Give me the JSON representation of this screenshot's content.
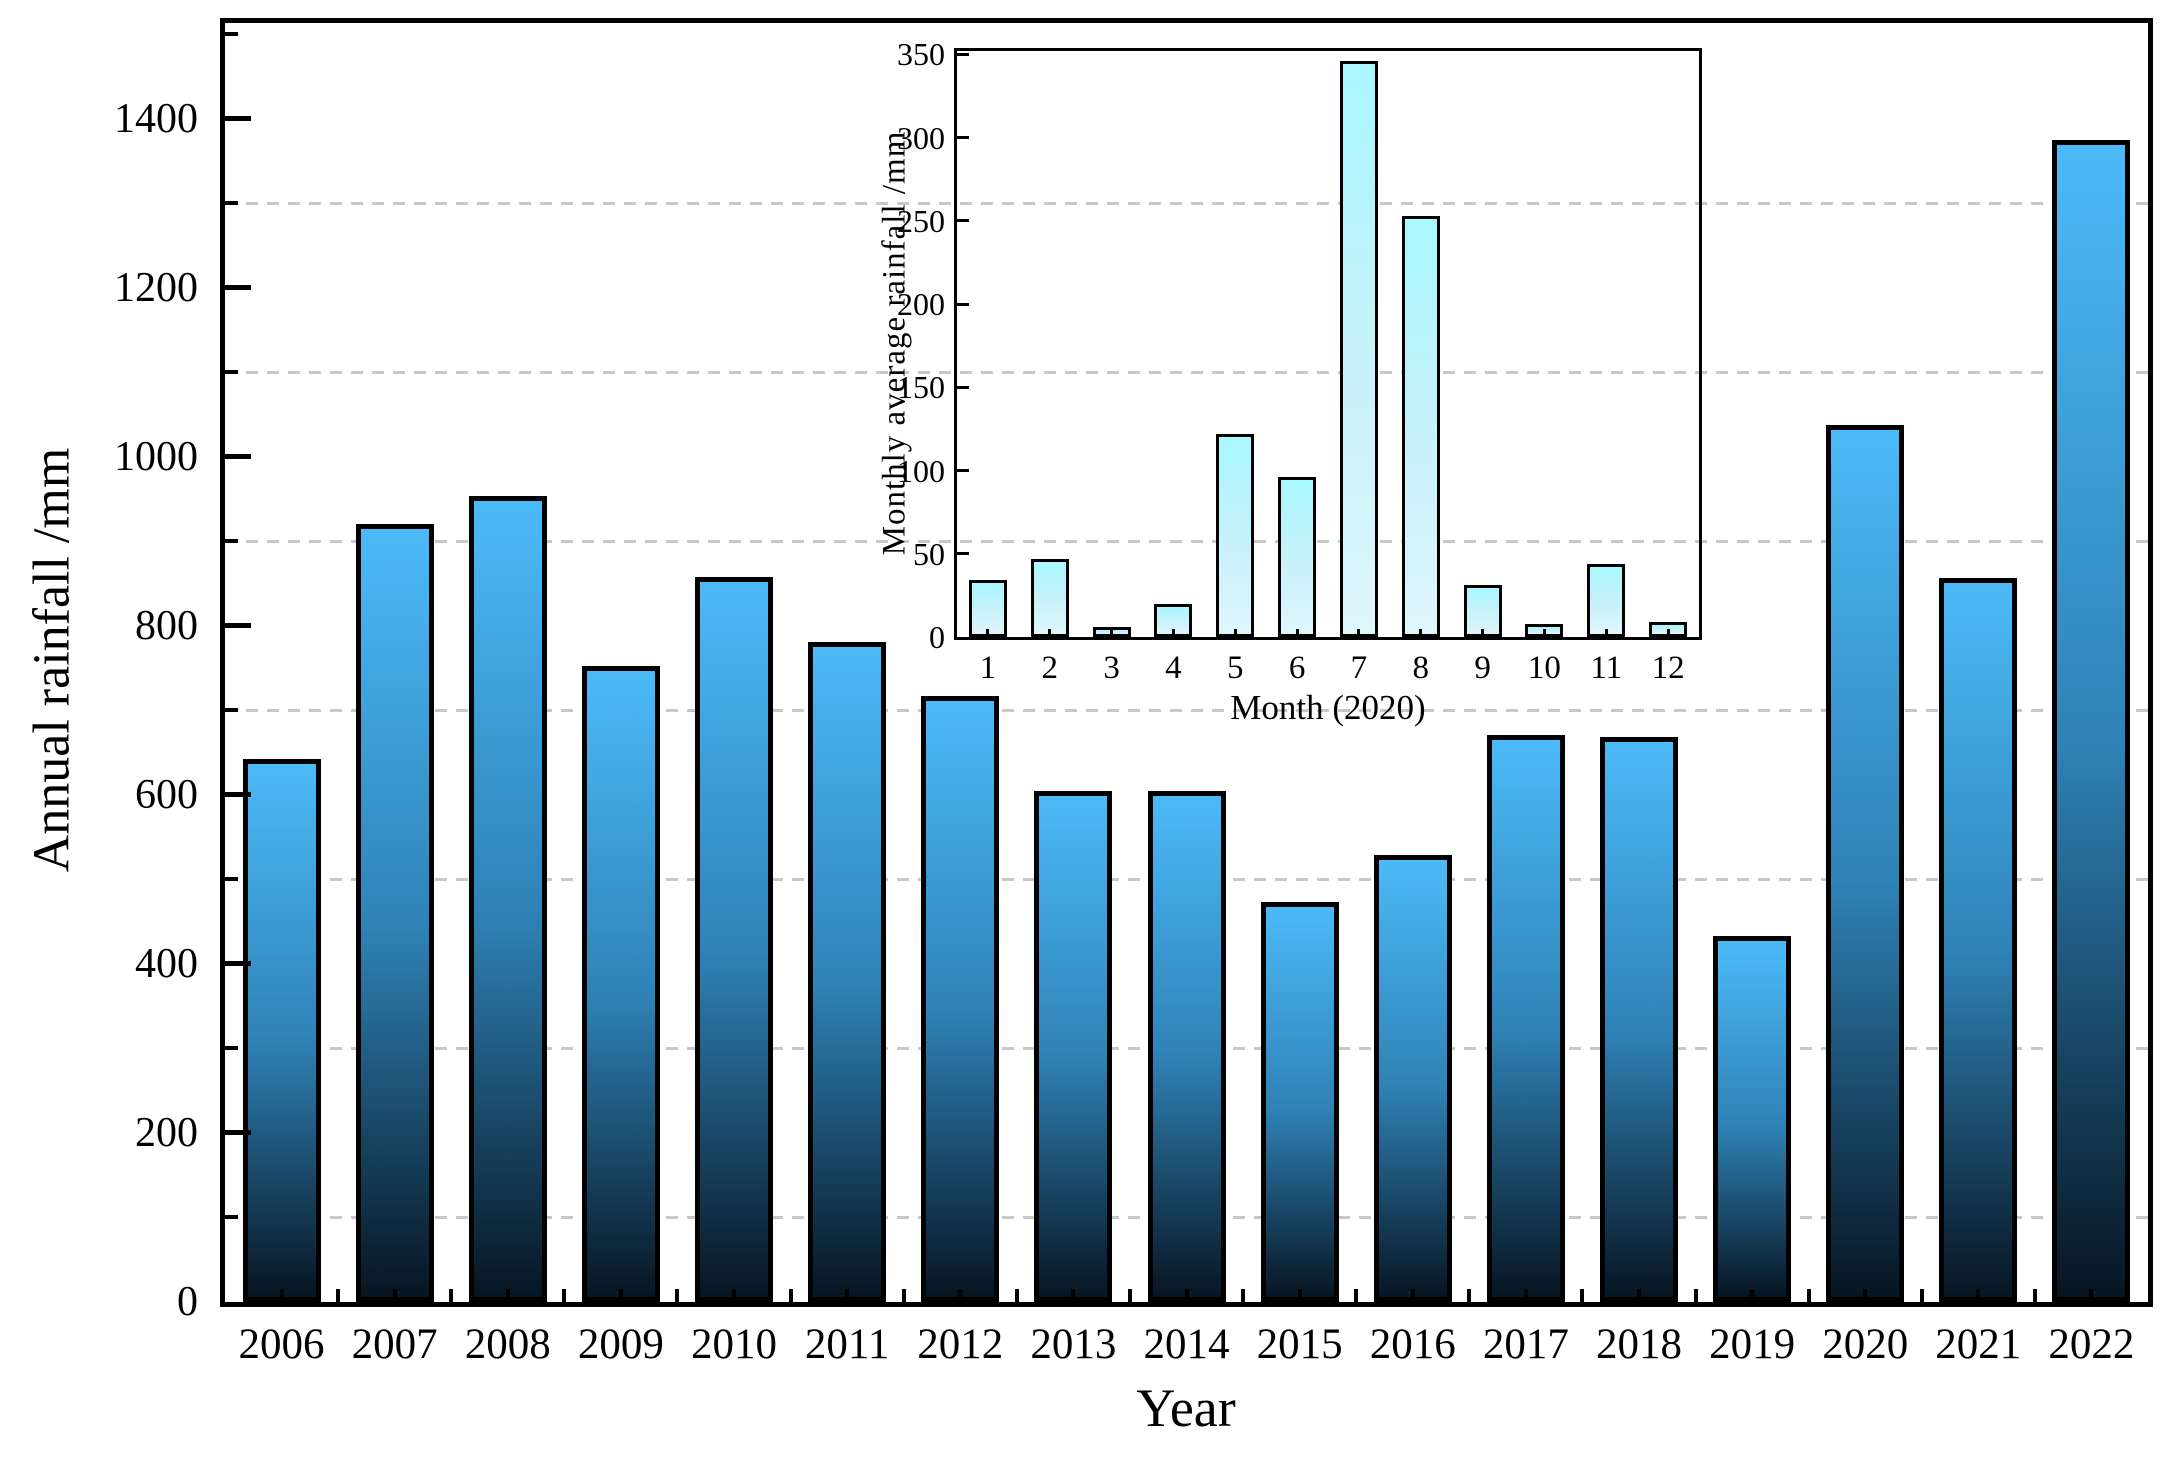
{
  "figure": {
    "background": "#ffffff",
    "main_axis": {
      "ylabel": "Annual rainfall /mm",
      "xlabel": "Year",
      "y_tick_labels": [
        0,
        200,
        400,
        600,
        800,
        1000,
        1200,
        1400
      ],
      "y_minor_ticks": [
        100,
        300,
        500,
        700,
        900,
        1100,
        1300,
        1500
      ],
      "gridline_values": [
        100,
        300,
        500,
        700,
        900,
        1100,
        1300
      ]
    },
    "inset_axis": {
      "ylabel": "Monthly average rainfall /mm",
      "xlabel": "Month (2020)",
      "y_tick_labels": [
        0,
        50,
        100,
        150,
        200,
        250,
        300,
        350
      ]
    },
    "colors": {
      "main_bar_top": "#4cbaf8",
      "main_bar_mid": "#2f82b6",
      "main_bar_bottom": "#071522",
      "inset_bar_top": "#a9f7ff",
      "inset_bar_bottom": "#dff6fc",
      "bar_outline": "#000000",
      "axis": "#000000",
      "gridline": "#c8c8c8"
    }
  },
  "chart_data": [
    {
      "id": "annual-rainfall",
      "type": "bar",
      "title": "",
      "xlabel": "Year",
      "ylabel": "Annual rainfall /mm",
      "categories": [
        "2006",
        "2007",
        "2008",
        "2009",
        "2010",
        "2011",
        "2012",
        "2013",
        "2014",
        "2015",
        "2016",
        "2017",
        "2018",
        "2019",
        "2020",
        "2021",
        "2022"
      ],
      "values": [
        642,
        921,
        953,
        753,
        858,
        781,
        717,
        605,
        605,
        473,
        529,
        671,
        668,
        433,
        1037,
        856,
        1375
      ],
      "ylim": [
        0,
        1512
      ],
      "grid": "horizontal dashed at odd hundreds",
      "legend": "none"
    },
    {
      "id": "monthly-rainfall-2020-inset",
      "type": "bar",
      "title": "",
      "xlabel": "Month (2020)",
      "ylabel": "Monthly average rainfall /mm",
      "categories": [
        "1",
        "2",
        "3",
        "4",
        "5",
        "6",
        "7",
        "8",
        "9",
        "10",
        "11",
        "12"
      ],
      "values": [
        34,
        47,
        6,
        20,
        122,
        96,
        346,
        253,
        31,
        8,
        44,
        9
      ],
      "ylim": [
        0,
        352
      ],
      "grid": "none (main-chart gridlines show through transparent inset)",
      "legend": "none"
    }
  ]
}
